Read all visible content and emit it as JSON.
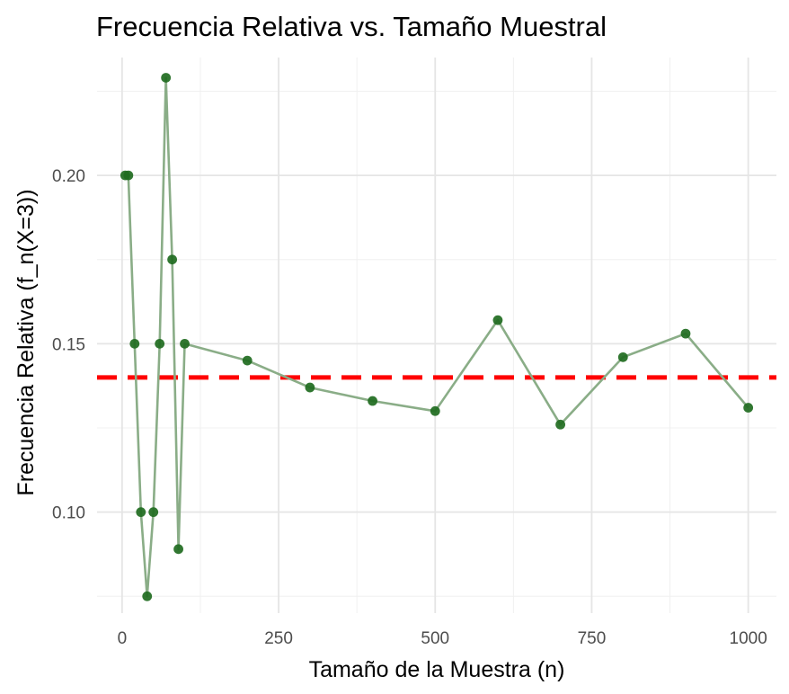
{
  "chart_data": {
    "type": "line",
    "title": "Frecuencia Relativa vs. Tamaño Muestral",
    "xlabel": "Tamaño de la Muestra (n)",
    "ylabel": "Frecuencia Relativa (f_n(X=3))",
    "xlim": [
      -40,
      1045
    ],
    "ylim": [
      0.07,
      0.235
    ],
    "x_ticks": [
      0,
      250,
      500,
      750,
      1000
    ],
    "y_ticks": [
      0.1,
      0.15,
      0.2
    ],
    "x_tick_labels": [
      "0",
      "250",
      "500",
      "750",
      "1000"
    ],
    "y_tick_labels": [
      "0.10",
      "0.15",
      "0.20"
    ],
    "grid": true,
    "line_color": "#8aad87",
    "point_color": "#1f6b1f",
    "reference_line": {
      "y": 0.14,
      "color": "#ff0000",
      "style": "dashed"
    },
    "series": [
      {
        "x": [
          5,
          10,
          20,
          30,
          40,
          50,
          60,
          70,
          80,
          90,
          100,
          200,
          300,
          400,
          500,
          600,
          700,
          800,
          900,
          1000
        ],
        "y": [
          0.2,
          0.2,
          0.15,
          0.1,
          0.075,
          0.1,
          0.15,
          0.229,
          0.175,
          0.089,
          0.15,
          0.145,
          0.137,
          0.133,
          0.13,
          0.157,
          0.126,
          0.146,
          0.153,
          0.131
        ]
      }
    ]
  }
}
